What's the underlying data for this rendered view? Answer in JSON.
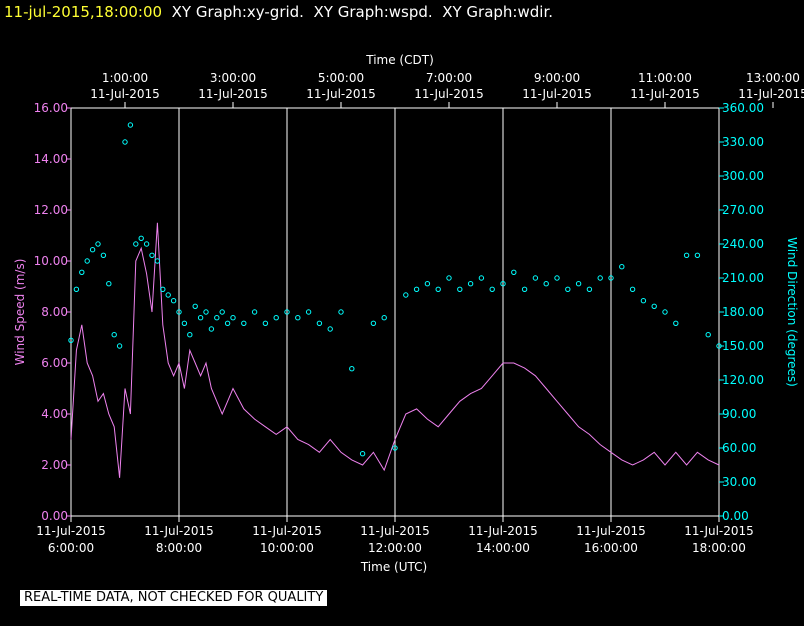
{
  "header": {
    "timestamp": "11-jul-2015,18:00:00",
    "titles": [
      "XY Graph:xy-grid.",
      "XY Graph:wspd.",
      "XY Graph:wdir."
    ]
  },
  "footer": {
    "notice": "REAL-TIME DATA, NOT CHECKED FOR QUALITY"
  },
  "colors": {
    "speed": "#ee82ee",
    "direction": "#00ffff",
    "grid": "#ffffff",
    "axis_text": "#ffffff",
    "background": "#000000"
  },
  "chart_data": {
    "type": "line",
    "title": "",
    "x_top_label": "Time (CDT)",
    "x_bottom_label": "Time (UTC)",
    "y_left_label": "Wind Speed (m/s)",
    "y_right_label": "Wind Direction (degrees)",
    "x_range_hours_utc": [
      6.0,
      18.0
    ],
    "bottom_ticks": [
      {
        "date": "11-Jul-2015",
        "time": "6:00:00"
      },
      {
        "date": "11-Jul-2015",
        "time": "8:00:00"
      },
      {
        "date": "11-Jul-2015",
        "time": "10:00:00"
      },
      {
        "date": "11-Jul-2015",
        "time": "12:00:00"
      },
      {
        "date": "11-Jul-2015",
        "time": "14:00:00"
      },
      {
        "date": "11-Jul-2015",
        "time": "16:00:00"
      },
      {
        "date": "11-Jul-2015",
        "time": "18:00:00"
      }
    ],
    "top_ticks": [
      {
        "date": "11-Jul-2015",
        "time": "1:00:00"
      },
      {
        "date": "11-Jul-2015",
        "time": "3:00:00"
      },
      {
        "date": "11-Jul-2015",
        "time": "5:00:00"
      },
      {
        "date": "11-Jul-2015",
        "time": "7:00:00"
      },
      {
        "date": "11-Jul-2015",
        "time": "9:00:00"
      },
      {
        "date": "11-Jul-2015",
        "time": "11:00:00"
      },
      {
        "date": "11-Jul-2015",
        "time": "13:00:00"
      }
    ],
    "y_left_range": [
      0,
      16
    ],
    "y_left_ticks": [
      "0.00",
      "2.00",
      "4.00",
      "6.00",
      "8.00",
      "10.00",
      "12.00",
      "14.00",
      "16.00"
    ],
    "y_right_range": [
      0,
      360
    ],
    "y_right_ticks": [
      "0.00",
      "30.00",
      "60.00",
      "90.00",
      "120.00",
      "150.00",
      "180.00",
      "210.00",
      "240.00",
      "270.00",
      "300.00",
      "330.00",
      "360.00"
    ],
    "grid": true,
    "series": [
      {
        "name": "Wind Speed",
        "axis": "left",
        "style": "line",
        "x": [
          6.0,
          6.1,
          6.2,
          6.3,
          6.4,
          6.5,
          6.6,
          6.7,
          6.8,
          6.9,
          7.0,
          7.1,
          7.2,
          7.3,
          7.4,
          7.5,
          7.6,
          7.7,
          7.8,
          7.9,
          8.0,
          8.1,
          8.2,
          8.3,
          8.4,
          8.5,
          8.6,
          8.7,
          8.8,
          8.9,
          9.0,
          9.2,
          9.4,
          9.6,
          9.8,
          10.0,
          10.2,
          10.4,
          10.6,
          10.8,
          11.0,
          11.2,
          11.4,
          11.6,
          11.8,
          12.0,
          12.2,
          12.4,
          12.6,
          12.8,
          13.0,
          13.2,
          13.4,
          13.6,
          13.8,
          14.0,
          14.2,
          14.4,
          14.6,
          14.8,
          15.0,
          15.2,
          15.4,
          15.6,
          15.8,
          16.0,
          16.2,
          16.4,
          16.6,
          16.8,
          17.0,
          17.2,
          17.4,
          17.6,
          17.8,
          18.0
        ],
        "y": [
          3.0,
          6.5,
          7.5,
          6.0,
          5.5,
          4.5,
          4.8,
          4.0,
          3.5,
          1.5,
          5.0,
          4.0,
          10.0,
          10.5,
          9.5,
          8.0,
          11.5,
          7.5,
          6.0,
          5.5,
          6.0,
          5.0,
          6.5,
          6.0,
          5.5,
          6.0,
          5.0,
          4.5,
          4.0,
          4.5,
          5.0,
          4.2,
          3.8,
          3.5,
          3.2,
          3.5,
          3.0,
          2.8,
          2.5,
          3.0,
          2.5,
          2.2,
          2.0,
          2.5,
          1.8,
          3.0,
          4.0,
          4.2,
          3.8,
          3.5,
          4.0,
          4.5,
          4.8,
          5.0,
          5.5,
          6.0,
          6.0,
          5.8,
          5.5,
          5.0,
          4.5,
          4.0,
          3.5,
          3.2,
          2.8,
          2.5,
          2.2,
          2.0,
          2.2,
          2.5,
          2.0,
          2.5,
          2.0,
          2.5,
          2.2,
          2.0
        ]
      },
      {
        "name": "Wind Direction",
        "axis": "right",
        "style": "markers",
        "x": [
          6.0,
          6.1,
          6.2,
          6.3,
          6.4,
          6.5,
          6.6,
          6.7,
          6.8,
          6.9,
          7.0,
          7.1,
          7.2,
          7.3,
          7.4,
          7.5,
          7.6,
          7.7,
          7.8,
          7.9,
          8.0,
          8.1,
          8.2,
          8.3,
          8.4,
          8.5,
          8.6,
          8.7,
          8.8,
          8.9,
          9.0,
          9.2,
          9.4,
          9.6,
          9.8,
          10.0,
          10.2,
          10.4,
          10.6,
          10.8,
          11.0,
          11.2,
          11.4,
          11.6,
          11.8,
          12.0,
          12.2,
          12.4,
          12.6,
          12.8,
          13.0,
          13.2,
          13.4,
          13.6,
          13.8,
          14.0,
          14.2,
          14.4,
          14.6,
          14.8,
          15.0,
          15.2,
          15.4,
          15.6,
          15.8,
          16.0,
          16.2,
          16.4,
          16.6,
          16.8,
          17.0,
          17.2,
          17.4,
          17.6,
          17.8,
          18.0
        ],
        "y": [
          155,
          200,
          215,
          225,
          235,
          240,
          230,
          205,
          160,
          150,
          330,
          345,
          240,
          245,
          240,
          230,
          225,
          200,
          195,
          190,
          180,
          170,
          160,
          185,
          175,
          180,
          165,
          175,
          180,
          170,
          175,
          170,
          180,
          170,
          175,
          180,
          175,
          180,
          170,
          165,
          180,
          130,
          55,
          170,
          175,
          60,
          195,
          200,
          205,
          200,
          210,
          200,
          205,
          210,
          200,
          205,
          215,
          200,
          210,
          205,
          210,
          200,
          205,
          200,
          210,
          210,
          220,
          200,
          190,
          185,
          180,
          170,
          230,
          230,
          160,
          150
        ]
      }
    ]
  }
}
